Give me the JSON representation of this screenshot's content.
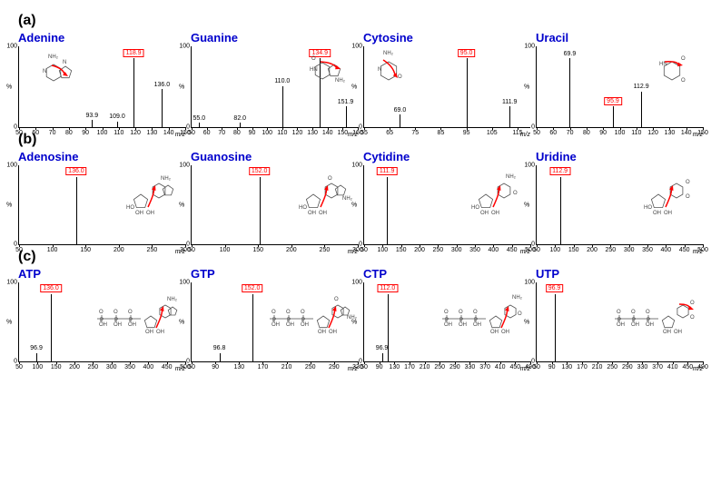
{
  "global": {
    "y_label": "%",
    "y_ticks": [
      0,
      100
    ],
    "x_label": "m/z",
    "colors": {
      "title": "#0000cc",
      "section": "#000000",
      "axis": "#000000",
      "peak": "#000000",
      "highlight_box": "#ff0000",
      "arrow": "#ff0000",
      "background": "#ffffff"
    },
    "fonts": {
      "title_size_pt": 13,
      "section_size_pt": 16,
      "tick_size_pt": 7,
      "peak_label_size_pt": 7
    }
  },
  "sections": [
    {
      "label": "(a)",
      "panels": [
        {
          "title": "Adenine",
          "xlim": [
            50,
            150
          ],
          "xtick_step": 10,
          "structure": "adenine",
          "peaks": [
            {
              "mz": 93.9,
              "intensity": 10,
              "label": "93.9"
            },
            {
              "mz": 109.0,
              "intensity": 8,
              "label": "109.0"
            },
            {
              "mz": 118.9,
              "intensity": 100,
              "label": "118.9",
              "highlight": true
            },
            {
              "mz": 136.0,
              "intensity": 55,
              "label": "136.0"
            }
          ]
        },
        {
          "title": "Guanine",
          "xlim": [
            50,
            160
          ],
          "xtick_step": 10,
          "structure": "guanine",
          "peaks": [
            {
              "mz": 55.0,
              "intensity": 6,
              "label": "55.0"
            },
            {
              "mz": 82.0,
              "intensity": 6,
              "label": "82.0"
            },
            {
              "mz": 110.0,
              "intensity": 60,
              "label": "110.0"
            },
            {
              "mz": 134.9,
              "intensity": 100,
              "label": "134.9",
              "highlight": true
            },
            {
              "mz": 151.9,
              "intensity": 30,
              "label": "151.9"
            }
          ]
        },
        {
          "title": "Cytosine",
          "xlim": [
            55,
            120
          ],
          "xtick_step": 10,
          "structure": "cytosine",
          "peaks": [
            {
              "mz": 69.0,
              "intensity": 18,
              "label": "69.0"
            },
            {
              "mz": 95.0,
              "intensity": 100,
              "label": "95.0",
              "highlight": true
            },
            {
              "mz": 111.9,
              "intensity": 30,
              "label": "111.9"
            }
          ]
        },
        {
          "title": "Uracil",
          "xlim": [
            50,
            150
          ],
          "xtick_step": 10,
          "structure": "uracil",
          "peaks": [
            {
              "mz": 69.9,
              "intensity": 100,
              "label": "69.9"
            },
            {
              "mz": 95.9,
              "intensity": 30,
              "label": "95.9",
              "highlight": true
            },
            {
              "mz": 112.9,
              "intensity": 52,
              "label": "112.9"
            }
          ]
        }
      ]
    },
    {
      "label": "(b)",
      "panels": [
        {
          "title": "Adenosine",
          "xlim": [
            50,
            300
          ],
          "xtick_step": 50,
          "structure": "adenosine",
          "peaks": [
            {
              "mz": 136.0,
              "intensity": 100,
              "label": "136.0",
              "highlight": true
            }
          ]
        },
        {
          "title": "Guanosine",
          "xlim": [
            50,
            300
          ],
          "xtick_step": 50,
          "structure": "guanosine",
          "peaks": [
            {
              "mz": 152.0,
              "intensity": 100,
              "label": "152.0",
              "highlight": true
            }
          ]
        },
        {
          "title": "Cytidine",
          "xlim": [
            50,
            500
          ],
          "xtick_step": 50,
          "structure": "cytidine",
          "peaks": [
            {
              "mz": 111.9,
              "intensity": 100,
              "label": "111.9",
              "highlight": true
            }
          ]
        },
        {
          "title": "Uridine",
          "xlim": [
            50,
            500
          ],
          "xtick_step": 50,
          "structure": "uridine",
          "peaks": [
            {
              "mz": 112.9,
              "intensity": 100,
              "label": "112.9",
              "highlight": true
            }
          ]
        }
      ]
    },
    {
      "label": "(c)",
      "panels": [
        {
          "title": "ATP",
          "xlim": [
            50,
            500
          ],
          "xtick_step": 50,
          "structure": "atp",
          "peaks": [
            {
              "mz": 96.9,
              "intensity": 12,
              "label": "96.9"
            },
            {
              "mz": 136.0,
              "intensity": 100,
              "label": "136.0",
              "highlight": true
            }
          ]
        },
        {
          "title": "GTP",
          "xlim": [
            50,
            330
          ],
          "xtick_step": 40,
          "structure": "gtp",
          "peaks": [
            {
              "mz": 96.8,
              "intensity": 12,
              "label": "96.8"
            },
            {
              "mz": 152.0,
              "intensity": 100,
              "label": "152.0",
              "highlight": true
            }
          ]
        },
        {
          "title": "CTP",
          "xlim": [
            50,
            490
          ],
          "xtick_step": 40,
          "structure": "ctp",
          "peaks": [
            {
              "mz": 96.9,
              "intensity": 12,
              "label": "96.9"
            },
            {
              "mz": 112.0,
              "intensity": 100,
              "label": "112.0",
              "highlight": true
            }
          ]
        },
        {
          "title": "UTP",
          "xlim": [
            50,
            490
          ],
          "xtick_step": 40,
          "structure": "utp",
          "peaks": [
            {
              "mz": 96.9,
              "intensity": 100,
              "label": "96.9",
              "highlight": true
            }
          ]
        }
      ]
    }
  ]
}
